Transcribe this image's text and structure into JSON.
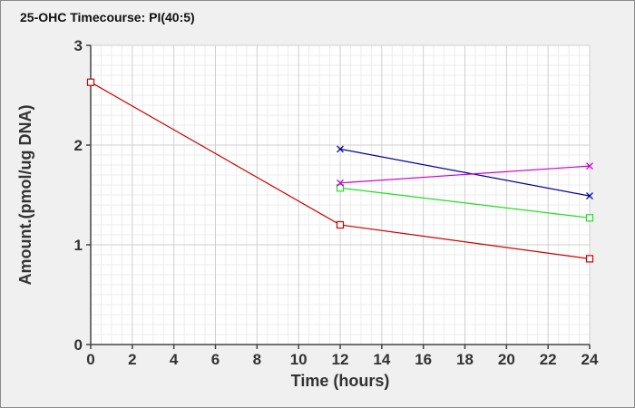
{
  "chart_data": {
    "type": "line",
    "title": "25-OHC Timecourse: PI(40:5)",
    "xlabel": "Time (hours)",
    "ylabel": "Amount.(pmol/ug DNA)",
    "xlim": [
      0,
      24
    ],
    "ylim": [
      0,
      3
    ],
    "xticks": [
      "0",
      "2",
      "4",
      "6",
      "8",
      "10",
      "12",
      "14",
      "16",
      "18",
      "20",
      "22",
      "24"
    ],
    "yticks": [
      "0",
      "1",
      "2",
      "3"
    ],
    "grid": true,
    "legend": "none",
    "series": [
      {
        "color": "#cc0000",
        "marker": "square",
        "x": [
          0,
          12,
          24
        ],
        "y": [
          2.63,
          1.2,
          0.86
        ]
      },
      {
        "color": "#22dd22",
        "marker": "square",
        "x": [
          12,
          24
        ],
        "y": [
          1.57,
          1.27
        ]
      },
      {
        "color": "#000099",
        "marker": "x",
        "x": [
          12,
          24
        ],
        "y": [
          1.96,
          1.49
        ]
      },
      {
        "color": "#cc00cc",
        "marker": "x",
        "x": [
          12,
          24
        ],
        "y": [
          1.62,
          1.79
        ]
      }
    ]
  }
}
